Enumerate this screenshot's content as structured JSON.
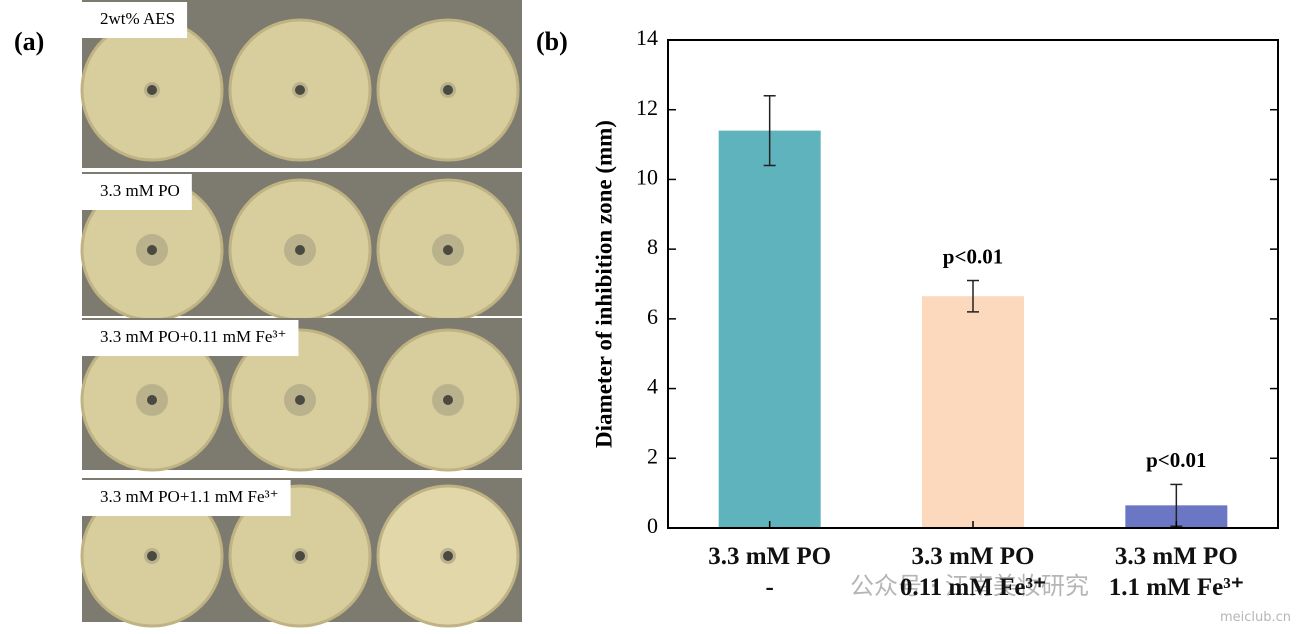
{
  "panel_a": {
    "label": "(a)",
    "rows": [
      {
        "label": "2wt% AES"
      },
      {
        "label": "3.3 mM PO"
      },
      {
        "label": "3.3 mM PO+0.11 mM Fe³⁺"
      },
      {
        "label": "3.3 mM PO+1.1 mM Fe³⁺"
      }
    ]
  },
  "chart_data": {
    "type": "bar",
    "panel_label": "(b)",
    "y_label": "Diameter of inhibition zone (mm)",
    "categories": [
      "3.3 mM PO\n-",
      "3.3 mM PO\n0.11 mM Fe³⁺",
      "3.3 mM PO\n1.1 mM Fe³⁺"
    ],
    "values": [
      11.4,
      6.65,
      0.65
    ],
    "errors": [
      1.0,
      0.45,
      0.6
    ],
    "value_annotations": [
      null,
      "p<0.01",
      "p<0.01"
    ],
    "colors": [
      "#5fb3bd",
      "#fcd9bd",
      "#6b77c4"
    ],
    "ylim": [
      0,
      14
    ],
    "yticks": [
      0,
      2,
      4,
      6,
      8,
      10,
      12,
      14
    ]
  },
  "watermark": {
    "text": "公众号 · 江南美妆研究",
    "site": "meiclub.cn"
  }
}
